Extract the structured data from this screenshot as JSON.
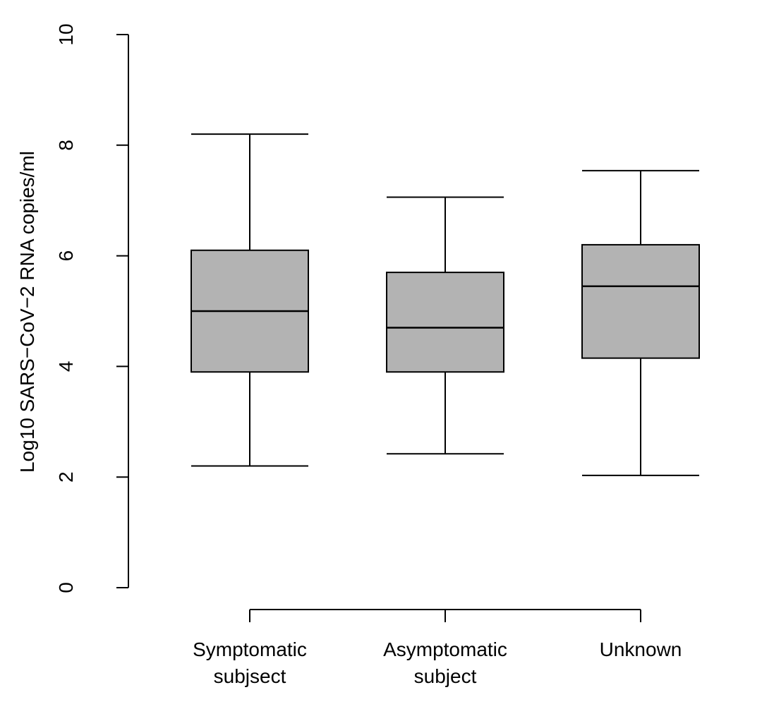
{
  "chart_data": {
    "type": "box",
    "ylabel": "Log10 SARS−CoV−2 RNA copies/ml",
    "xlabel": "",
    "ylim": [
      0,
      10
    ],
    "y_ticks": [
      0,
      2,
      4,
      6,
      8,
      10
    ],
    "grid": false,
    "categories": [
      {
        "label_lines": [
          "Symptomatic",
          "subjsect"
        ]
      },
      {
        "label_lines": [
          "Asymptomatic",
          "subject"
        ]
      },
      {
        "label_lines": [
          "Unknown"
        ]
      }
    ],
    "boxes": [
      {
        "whisker_low": 2.2,
        "q1": 3.9,
        "median": 5.0,
        "q3": 6.1,
        "whisker_high": 8.2
      },
      {
        "whisker_low": 2.42,
        "q1": 3.9,
        "median": 4.7,
        "q3": 5.7,
        "whisker_high": 7.06
      },
      {
        "whisker_low": 2.03,
        "q1": 4.15,
        "median": 5.45,
        "q3": 6.2,
        "whisker_high": 7.54
      }
    ],
    "box_fill": "#b3b3b3",
    "line_color": "#000000"
  }
}
